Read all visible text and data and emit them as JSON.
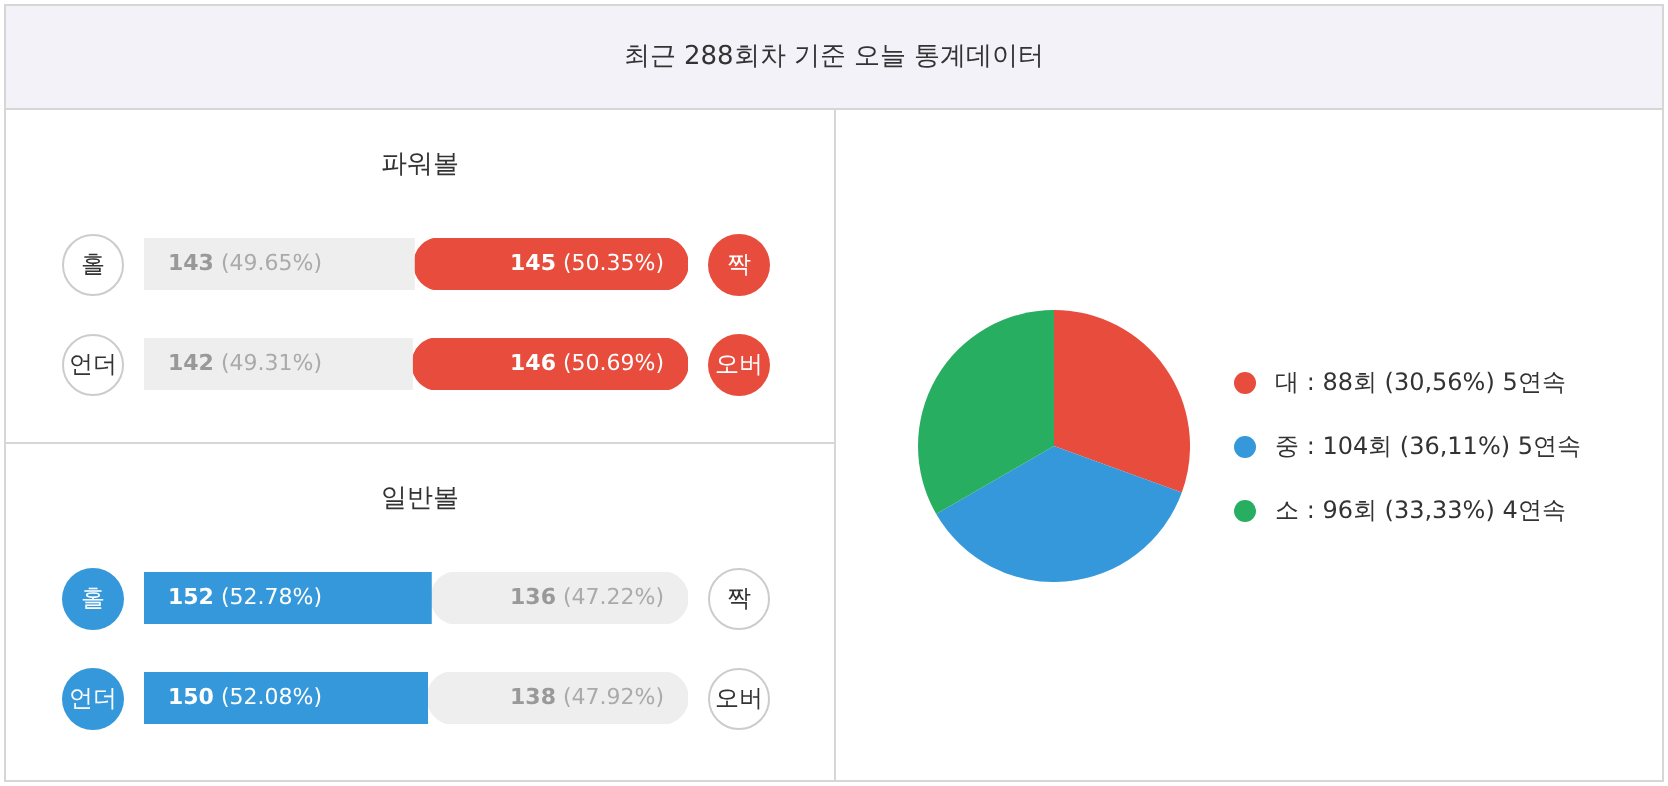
{
  "chart_data": [
    {
      "type": "bar",
      "title": "최근 288회차 기준 오늘 통계데이터",
      "subtitle": "파워볼",
      "orientation": "horizontal",
      "stacked": true,
      "categories": [
        null
      ],
      "xlim": [
        0,
        288
      ],
      "tick_labels": false,
      "series": [
        {
          "name": "홀",
          "color": "#eeeeee",
          "values": [
            143
          ],
          "value_labels": [
            "143 (49.65%)"
          ]
        },
        {
          "name": "짝",
          "color": "#e74c3c",
          "values": [
            145
          ],
          "value_labels": [
            "145 (50.35%)"
          ]
        }
      ]
    },
    {
      "type": "bar",
      "orientation": "horizontal",
      "stacked": true,
      "categories": [
        null
      ],
      "xlim": [
        0,
        288
      ],
      "tick_labels": false,
      "series": [
        {
          "name": "언더",
          "color": "#eeeeee",
          "values": [
            142
          ],
          "value_labels": [
            "142 (49.31%)"
          ]
        },
        {
          "name": "오버",
          "color": "#e74c3c",
          "values": [
            146
          ],
          "value_labels": [
            "146 (50.69%)"
          ]
        }
      ]
    },
    {
      "type": "bar",
      "subtitle": "일반볼",
      "orientation": "horizontal",
      "stacked": true,
      "categories": [
        null
      ],
      "xlim": [
        0,
        288
      ],
      "tick_labels": false,
      "series": [
        {
          "name": "홀",
          "color": "#3498db",
          "values": [
            152
          ],
          "value_labels": [
            "152 (52.78%)"
          ]
        },
        {
          "name": "짝",
          "color": "#eeeeee",
          "values": [
            136
          ],
          "value_labels": [
            "136 (47.22%)"
          ]
        }
      ]
    },
    {
      "type": "bar",
      "orientation": "horizontal",
      "stacked": true,
      "categories": [
        null
      ],
      "xlim": [
        0,
        288
      ],
      "tick_labels": false,
      "series": [
        {
          "name": "언더",
          "color": "#3498db",
          "values": [
            150
          ],
          "value_labels": [
            "150 (52.08%)"
          ]
        },
        {
          "name": "오버",
          "color": "#eeeeee",
          "values": [
            138
          ],
          "value_labels": [
            "138 (47.92%)"
          ]
        }
      ]
    },
    {
      "type": "pie",
      "categories": [
        "대 : 88회 (30,56%) 5연속",
        "중 : 104회 (36,11%) 5연속",
        "소 : 96회 (33,33%) 4연속"
      ],
      "values": [
        88,
        104,
        96
      ],
      "colors": [
        "#e74c3c",
        "#3498db",
        "#27ae60"
      ],
      "legend": "right"
    }
  ]
}
